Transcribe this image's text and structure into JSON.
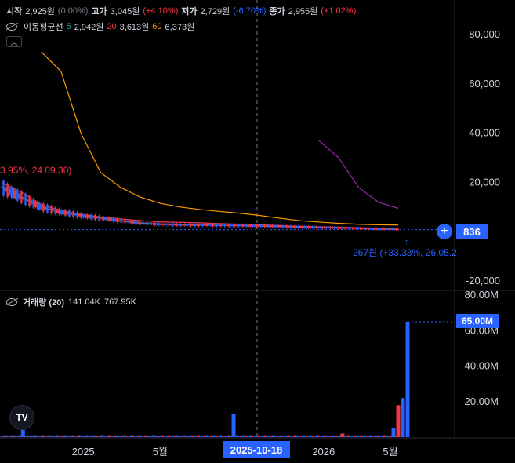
{
  "legend": {
    "open_label": "시작",
    "open_value": "2,925원",
    "open_change": "(0.00%)",
    "high_label": "고가",
    "high_value": "3,045원",
    "high_change": "(+4.10%)",
    "low_label": "저가",
    "low_value": "2,729원",
    "low_change": "(-6.70%)",
    "close_label": "종가",
    "close_value": "2,955원",
    "close_change": "(+1.02%)"
  },
  "ma_legend": {
    "label": "이동평균선",
    "p1": "5",
    "v1": "2,942원",
    "p2": "20",
    "v2": "3,613원",
    "p3": "60",
    "v3": "6,373원"
  },
  "volume_legend": {
    "label": "거래량 (20)",
    "v1": "141.04K",
    "v2": "767.95K"
  },
  "price_tag": "836",
  "volume_tag": "65.00M",
  "date_tag": "2025-10-18",
  "annotations": {
    "high": "3.95%, 24.09.30)",
    "low": "267원 (+33.33%, 26.05.2"
  },
  "logo_text": "TV",
  "collapse_icon": "chevron-up-icon",
  "colors": {
    "up": "#f23645",
    "down": "#2962ff",
    "ma5": "#26a69a",
    "ma20": "#f23645",
    "ma60": "#ff9800",
    "ma120": "#9c27b0",
    "accent": "#2962ff"
  },
  "chart_data": [
    {
      "type": "line",
      "title": "",
      "y_axis_ticks": [
        "80,000",
        "60,000",
        "40,000",
        "20,000",
        "0",
        "-20,000"
      ],
      "y_axis_tick_values": [
        80000,
        60000,
        40000,
        20000,
        0,
        -20000
      ],
      "ylim": [
        -20000,
        85000
      ],
      "x_axis_ticks": [
        "2025",
        "5월",
        "2026",
        "5월"
      ],
      "current_price": 836,
      "series": [
        {
          "x": [
            "2024-09",
            "2024-10",
            "2024-11",
            "2024-12",
            "2025-01",
            "2025-02",
            "2025-03",
            "2025-04",
            "2025-05",
            "2025-06",
            "2025-07",
            "2025-08",
            "2025-09",
            "2025-10",
            "2025-11",
            "2025-12",
            "2026-01",
            "2026-02",
            "2026-03",
            "2026-04",
            "2026-05"
          ],
          "values": [
            18000,
            14000,
            10000,
            8000,
            6500,
            5500,
            4500,
            3500,
            3000,
            2800,
            2700,
            2600,
            2500,
            2300,
            2100,
            1900,
            1700,
            1500,
            1300,
            1100,
            900
          ]
        },
        {
          "name": "20",
          "x": [
            "2024-09",
            "2024-10",
            "2024-11",
            "2024-12",
            "2025-01",
            "2025-02",
            "2025-03",
            "2025-04",
            "2025-05",
            "2025-06",
            "2025-07",
            "2025-08",
            "2025-09",
            "2025-10",
            "2025-11",
            "2025-12",
            "2026-01",
            "2026-02",
            "2026-03",
            "2026-04",
            "2026-05"
          ],
          "values": [
            20000,
            16000,
            11000,
            8500,
            7000,
            6000,
            5200,
            4500,
            4000,
            3800,
            3600,
            3300,
            3000,
            2800,
            2500,
            2200,
            2000,
            1800,
            1600,
            1400,
            1300
          ]
        },
        {
          "name": "60",
          "x": [
            "2024-11",
            "2024-12",
            "2025-01",
            "2025-02",
            "2025-03",
            "2025-04",
            "2025-05",
            "2025-06",
            "2025-07",
            "2025-08",
            "2025-09",
            "2025-10",
            "2025-11",
            "2025-12",
            "2026-01",
            "2026-02",
            "2026-03",
            "2026-04",
            "2026-05"
          ],
          "values": [
            73000,
            65000,
            40000,
            24000,
            18000,
            14000,
            11500,
            10000,
            9000,
            8200,
            7500,
            6600,
            5500,
            4500,
            3900,
            3400,
            3000,
            2800,
            2700
          ]
        },
        {
          "x": [
            "2026-01",
            "2026-02",
            "2026-03",
            "2026-04",
            "2026-05"
          ],
          "values": [
            37000,
            30000,
            18000,
            12000,
            9500
          ]
        }
      ]
    },
    {
      "type": "bar",
      "title": "",
      "y_axis_ticks": [
        "80.00M",
        "60.00M",
        "40.00M",
        "20.00M"
      ],
      "y_axis_tick_values": [
        80,
        60,
        40,
        20
      ],
      "ylim": [
        0,
        80
      ],
      "unit": "M",
      "x_axis_ticks": [
        "2025",
        "5월",
        "2026",
        "5월"
      ],
      "current_volume": 65,
      "series": [
        {
          "x": [
            "2024-10",
            "2025-10",
            "2026-02",
            "2026-04",
            "2026-05a",
            "2026-05b",
            "2026-05c"
          ],
          "values": [
            4,
            13,
            2,
            5,
            18,
            22,
            65
          ]
        }
      ]
    }
  ]
}
